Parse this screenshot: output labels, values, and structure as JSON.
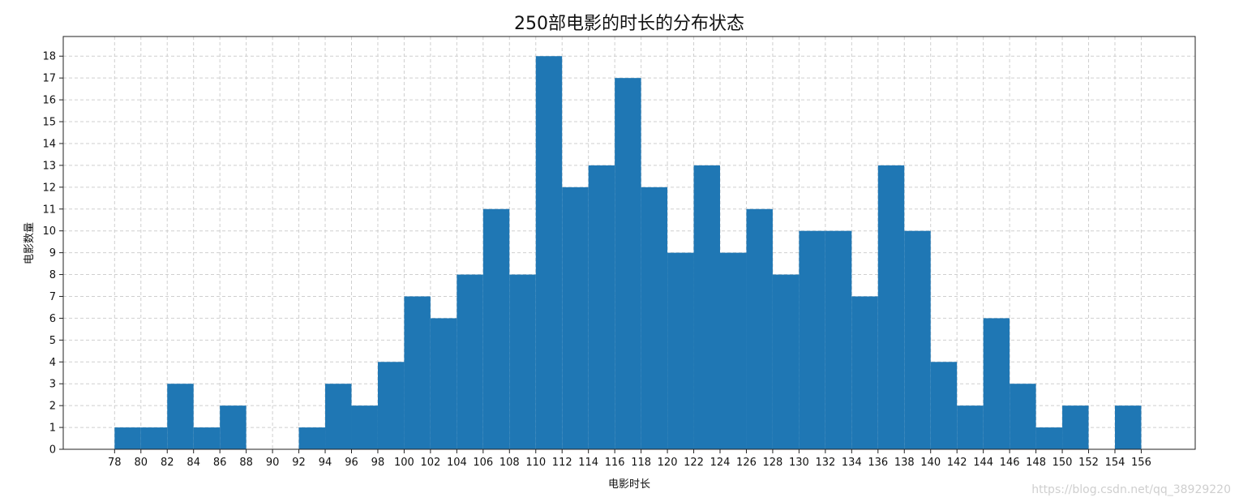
{
  "chart_data": {
    "type": "bar",
    "title": "250部电影的时长的分布状态",
    "xlabel": "电影时长",
    "ylabel": "电影数量",
    "bin_edges": [
      78,
      80,
      82,
      84,
      86,
      88,
      90,
      92,
      94,
      96,
      98,
      100,
      102,
      104,
      106,
      108,
      110,
      112,
      114,
      116,
      118,
      120,
      122,
      124,
      126,
      128,
      130,
      132,
      134,
      136,
      138,
      140,
      142,
      144,
      146,
      148,
      150,
      152,
      154,
      156
    ],
    "values": [
      1,
      1,
      3,
      1,
      2,
      0,
      0,
      1,
      3,
      2,
      4,
      7,
      6,
      8,
      11,
      8,
      18,
      12,
      13,
      17,
      12,
      9,
      13,
      9,
      11,
      8,
      10,
      10,
      7,
      13,
      10,
      4,
      2,
      6,
      3,
      1,
      2,
      0,
      2
    ],
    "xticks": [
      78,
      80,
      82,
      84,
      86,
      88,
      90,
      92,
      94,
      96,
      98,
      100,
      102,
      104,
      106,
      108,
      110,
      112,
      114,
      116,
      118,
      120,
      122,
      124,
      126,
      128,
      130,
      132,
      134,
      136,
      138,
      140,
      142,
      144,
      146,
      148,
      150,
      152,
      154,
      156
    ],
    "yticks": [
      0,
      1,
      2,
      3,
      4,
      5,
      6,
      7,
      8,
      9,
      10,
      11,
      12,
      13,
      14,
      15,
      16,
      17,
      18
    ],
    "xlim": [
      74.1,
      160.1
    ],
    "ylim": [
      0,
      18.9
    ],
    "grid": true,
    "colors": {
      "bar": "#1f77b4"
    }
  },
  "watermark": "https://blog.csdn.net/qq_38929220"
}
